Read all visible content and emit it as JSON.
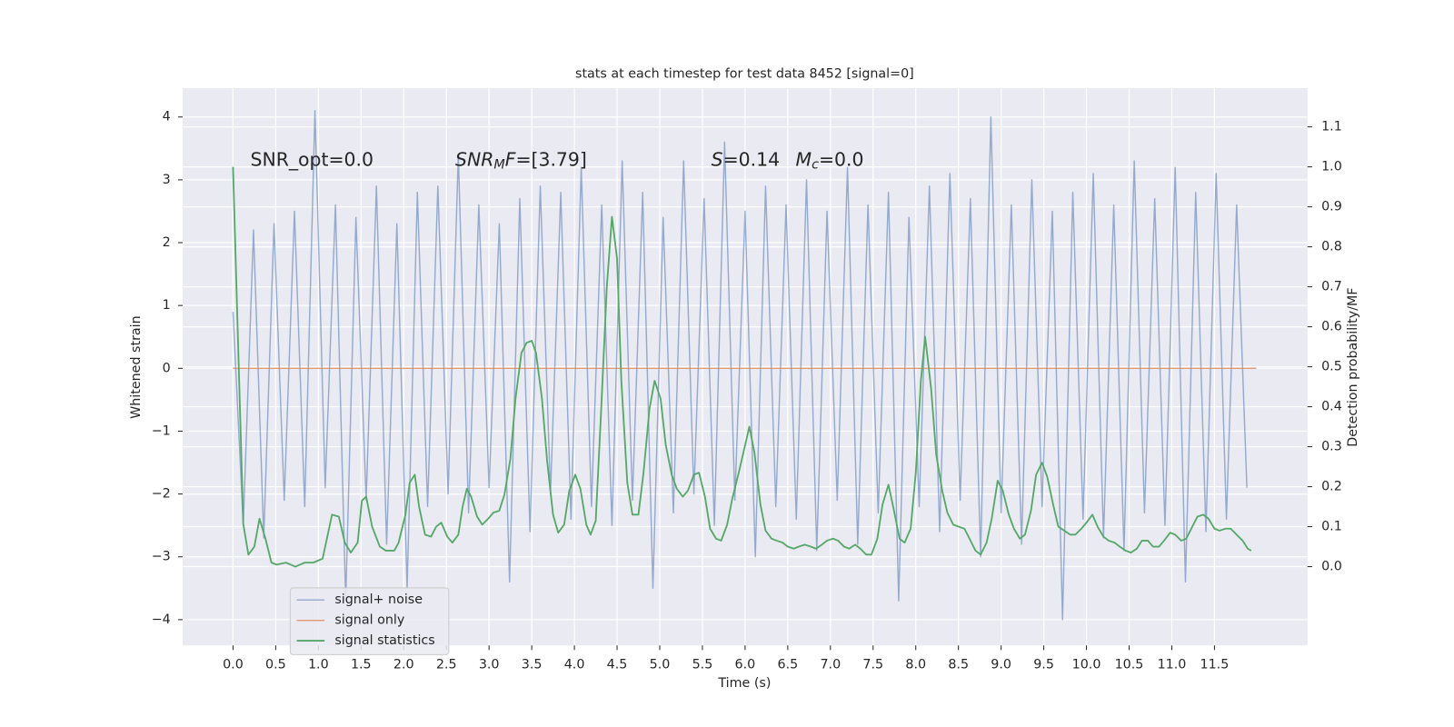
{
  "chart_data": {
    "type": "line",
    "title": "stats at each timestep for test data 8452 [signal=0]",
    "x_label": "Time (s)",
    "y_label": "Whitened strain",
    "y2_label": "Detection probability/MF",
    "grid": true,
    "legend": "lower left",
    "xlim": [
      -0.59,
      12.59
    ],
    "ylim": [
      -4.41,
      4.46
    ],
    "y2lim": [
      -0.197,
      1.197
    ],
    "xticks": [
      {
        "value": 0,
        "label": "0.0"
      },
      0.5,
      {
        "value": 1,
        "label": "1.0"
      },
      1.5,
      {
        "value": 2,
        "label": "2.0"
      },
      2.5,
      {
        "value": 3,
        "label": "3.0"
      },
      3.5,
      {
        "value": 4,
        "label": "4.0"
      },
      4.5,
      {
        "value": 5,
        "label": "5.0"
      },
      5.5,
      {
        "value": 6,
        "label": "6.0"
      },
      6.5,
      {
        "value": 7,
        "label": "7.0"
      },
      7.5,
      {
        "value": 8,
        "label": "8.0"
      },
      8.5,
      {
        "value": 9,
        "label": "9.0"
      },
      9.5,
      {
        "value": 10,
        "label": "10.0"
      },
      10.5,
      {
        "value": 11,
        "label": "11.0"
      },
      11.5
    ],
    "yticks": [
      {
        "value": -4,
        "label": "−4"
      },
      {
        "value": -3,
        "label": "−3"
      },
      {
        "value": -2,
        "label": "−2"
      },
      {
        "value": -1,
        "label": "−1"
      },
      0,
      1,
      2,
      3,
      4
    ],
    "y2ticks": [
      {
        "value": 0,
        "label": "0.0"
      },
      0.1,
      0.2,
      0.3,
      0.4,
      0.5,
      0.6,
      0.7,
      0.8,
      0.9,
      {
        "value": 1,
        "label": "1.0"
      },
      1.1
    ],
    "annotations": [
      [
        {
          "text": "SNR_opt=0.0"
        }
      ],
      [
        {
          "text": "SNR",
          "style": "italic"
        },
        {
          "text": "M",
          "style": "sub"
        },
        {
          "text": "F",
          "style": "italic"
        },
        {
          "text": "=[3.79]"
        }
      ],
      [
        {
          "text": "S",
          "style": "italic"
        },
        {
          "text": "=0.14"
        }
      ],
      [
        {
          "text": "M",
          "style": "italic"
        },
        {
          "text": "c",
          "style": "sub"
        },
        {
          "text": "=0.0"
        }
      ]
    ],
    "series": [
      {
        "name": "signal+ noise",
        "color": "#4c72b0",
        "x": [
          0,
          0.12,
          0.24,
          0.36,
          0.48,
          0.6,
          0.72,
          0.84,
          0.96,
          1.08,
          1.2,
          1.32,
          1.44,
          1.56,
          1.68,
          1.8,
          1.92,
          2.04,
          2.16,
          2.28,
          2.4,
          2.52,
          2.64,
          2.76,
          2.88,
          3,
          3.12,
          3.24,
          3.36,
          3.48,
          3.6,
          3.72,
          3.84,
          3.96,
          4.08,
          4.2,
          4.32,
          4.44,
          4.56,
          4.68,
          4.8,
          4.92,
          5.04,
          5.16,
          5.28,
          5.4,
          5.52,
          5.64,
          5.76,
          5.88,
          6,
          6.12,
          6.24,
          6.36,
          6.48,
          6.6,
          6.72,
          6.84,
          6.96,
          7.08,
          7.2,
          7.32,
          7.44,
          7.56,
          7.68,
          7.8,
          7.92,
          8.04,
          8.16,
          8.28,
          8.4,
          8.52,
          8.64,
          8.76,
          8.88,
          9,
          9.12,
          9.24,
          9.36,
          9.48,
          9.6,
          9.72,
          9.84,
          9.96,
          10.08,
          10.2,
          10.32,
          10.44,
          10.56,
          10.68,
          10.8,
          10.92,
          11.04,
          11.16,
          11.28,
          11.4,
          11.52,
          11.64,
          11.76,
          11.88
        ],
        "values": [
          0.9,
          -2.5,
          2.2,
          -2.7,
          2.3,
          -2.1,
          2.5,
          -2.2,
          4.1,
          -1.9,
          2.6,
          -3.7,
          2.4,
          -2.1,
          2.9,
          -2.8,
          2.3,
          -3.5,
          2.8,
          -2.2,
          2.9,
          -2.0,
          3.4,
          -2.3,
          2.6,
          -1.9,
          2.3,
          -3.4,
          2.7,
          -2.6,
          2.9,
          -2.0,
          2.8,
          -2.4,
          3.2,
          -2.2,
          2.6,
          -2.5,
          3.3,
          -2.1,
          2.8,
          -3.5,
          2.4,
          -2.3,
          3.3,
          -2.0,
          2.7,
          -2.5,
          3.6,
          -2.1,
          2.5,
          -3.0,
          2.9,
          -2.2,
          2.6,
          -2.4,
          3.0,
          -2.9,
          2.5,
          -2.1,
          3.2,
          -2.8,
          2.6,
          -2.3,
          2.8,
          -3.7,
          2.4,
          -2.2,
          2.9,
          -2.6,
          3.1,
          -2.1,
          2.7,
          -3.0,
          4.0,
          -2.3,
          2.6,
          -2.8,
          3.0,
          -2.2,
          2.5,
          -4.0,
          2.8,
          -2.4,
          3.1,
          -2.7,
          2.6,
          -2.9,
          3.3,
          -2.3,
          2.7,
          -2.5,
          3.2,
          -3.4,
          2.8,
          -2.6,
          3.1,
          -2.4,
          2.6,
          -1.9
        ]
      },
      {
        "name": "signal only",
        "color": "#dd8452",
        "x": [
          0,
          11.99
        ],
        "values": [
          0,
          0
        ]
      },
      {
        "name": "signal statistics",
        "color": "#55a868",
        "axis": "y2",
        "x": [
          0,
          0.12,
          0.18,
          0.25,
          0.31,
          0.38,
          0.45,
          0.51,
          0.62,
          0.73,
          0.84,
          0.94,
          1.05,
          1.16,
          1.24,
          1.31,
          1.38,
          1.46,
          1.51,
          1.56,
          1.63,
          1.72,
          1.79,
          1.89,
          1.94,
          2.02,
          2.07,
          2.13,
          2.18,
          2.25,
          2.32,
          2.38,
          2.44,
          2.51,
          2.57,
          2.64,
          2.69,
          2.74,
          2.79,
          2.86,
          2.92,
          2.99,
          3.05,
          3.12,
          3.18,
          3.25,
          3.31,
          3.38,
          3.44,
          3.5,
          3.55,
          3.62,
          3.68,
          3.75,
          3.81,
          3.88,
          3.94,
          4.01,
          4.07,
          4.14,
          4.19,
          4.25,
          4.31,
          4.38,
          4.44,
          4.5,
          4.55,
          4.62,
          4.68,
          4.75,
          4.81,
          4.88,
          4.94,
          5.01,
          5.07,
          5.14,
          5.2,
          5.27,
          5.33,
          5.4,
          5.46,
          5.53,
          5.59,
          5.66,
          5.72,
          5.79,
          5.85,
          5.92,
          5.98,
          6.05,
          6.11,
          6.18,
          6.24,
          6.31,
          6.37,
          6.44,
          6.5,
          6.57,
          6.63,
          6.7,
          6.77,
          6.83,
          6.9,
          6.96,
          7.03,
          7.09,
          7.16,
          7.22,
          7.29,
          7.35,
          7.42,
          7.48,
          7.55,
          7.61,
          7.68,
          7.74,
          7.81,
          7.87,
          7.94,
          8.0,
          8.06,
          8.11,
          8.18,
          8.24,
          8.31,
          8.37,
          8.44,
          8.5,
          8.57,
          8.63,
          8.7,
          8.76,
          8.83,
          8.89,
          8.96,
          9.02,
          9.09,
          9.15,
          9.22,
          9.28,
          9.35,
          9.41,
          9.48,
          9.54,
          9.61,
          9.67,
          9.74,
          9.81,
          9.87,
          9.94,
          10.0,
          10.07,
          10.13,
          10.2,
          10.26,
          10.33,
          10.39,
          10.46,
          10.52,
          10.59,
          10.65,
          10.72,
          10.78,
          10.85,
          10.91,
          10.98,
          11.04,
          11.11,
          11.17,
          11.24,
          11.3,
          11.37,
          11.43,
          11.5,
          11.56,
          11.63,
          11.69,
          11.76,
          11.83,
          11.89,
          11.93
        ],
        "values": [
          1.0,
          0.107,
          0.03,
          0.05,
          0.12,
          0.07,
          0.01,
          0.005,
          0.01,
          0.0,
          0.01,
          0.01,
          0.02,
          0.13,
          0.125,
          0.06,
          0.035,
          0.06,
          0.165,
          0.175,
          0.1,
          0.05,
          0.04,
          0.04,
          0.06,
          0.13,
          0.21,
          0.23,
          0.15,
          0.08,
          0.075,
          0.1,
          0.11,
          0.075,
          0.06,
          0.08,
          0.15,
          0.195,
          0.175,
          0.125,
          0.105,
          0.12,
          0.135,
          0.14,
          0.18,
          0.27,
          0.42,
          0.535,
          0.56,
          0.565,
          0.535,
          0.42,
          0.265,
          0.13,
          0.085,
          0.105,
          0.19,
          0.23,
          0.195,
          0.105,
          0.08,
          0.115,
          0.375,
          0.7,
          0.875,
          0.77,
          0.465,
          0.21,
          0.13,
          0.13,
          0.235,
          0.395,
          0.465,
          0.42,
          0.305,
          0.23,
          0.195,
          0.175,
          0.19,
          0.23,
          0.235,
          0.175,
          0.095,
          0.07,
          0.065,
          0.105,
          0.17,
          0.23,
          0.285,
          0.35,
          0.285,
          0.155,
          0.09,
          0.07,
          0.065,
          0.06,
          0.05,
          0.045,
          0.05,
          0.055,
          0.05,
          0.045,
          0.055,
          0.065,
          0.07,
          0.065,
          0.05,
          0.045,
          0.055,
          0.045,
          0.03,
          0.03,
          0.07,
          0.155,
          0.205,
          0.145,
          0.07,
          0.06,
          0.095,
          0.235,
          0.465,
          0.575,
          0.445,
          0.28,
          0.19,
          0.135,
          0.105,
          0.1,
          0.095,
          0.07,
          0.04,
          0.03,
          0.06,
          0.12,
          0.215,
          0.19,
          0.13,
          0.095,
          0.07,
          0.08,
          0.14,
          0.23,
          0.26,
          0.225,
          0.155,
          0.1,
          0.09,
          0.08,
          0.08,
          0.095,
          0.11,
          0.13,
          0.1,
          0.075,
          0.065,
          0.06,
          0.05,
          0.04,
          0.035,
          0.045,
          0.065,
          0.065,
          0.05,
          0.05,
          0.065,
          0.085,
          0.08,
          0.065,
          0.07,
          0.1,
          0.125,
          0.13,
          0.12,
          0.095,
          0.09,
          0.095,
          0.095,
          0.08,
          0.065,
          0.045,
          0.04
        ]
      }
    ]
  }
}
